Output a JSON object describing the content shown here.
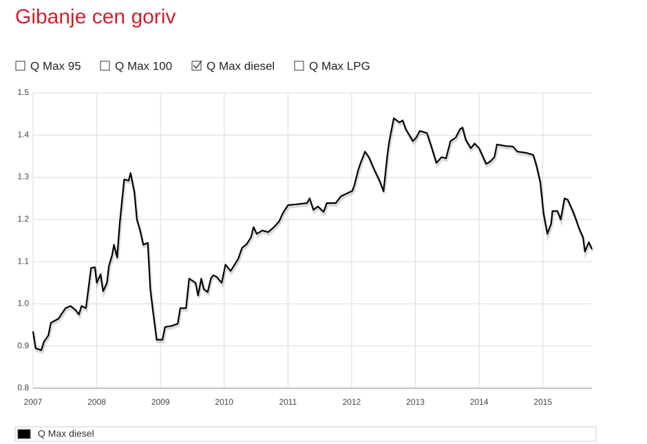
{
  "chart_data": {
    "type": "line",
    "title": "Gibanje cen goriv",
    "filters": [
      {
        "label": "Q Max 95",
        "checked": false
      },
      {
        "label": "Q Max 100",
        "checked": false
      },
      {
        "label": "Q Max diesel",
        "checked": true
      },
      {
        "label": "Q Max LPG",
        "checked": false
      }
    ],
    "x": [
      2007.0,
      2007.04,
      2007.13,
      2007.17,
      2007.24,
      2007.28,
      2007.4,
      2007.51,
      2007.59,
      2007.67,
      2007.72,
      2007.76,
      2007.83,
      2007.86,
      2007.91,
      2007.97,
      2008.0,
      2008.06,
      2008.1,
      2008.16,
      2008.19,
      2008.24,
      2008.27,
      2008.32,
      2008.36,
      2008.43,
      2008.5,
      2008.53,
      2008.59,
      2008.63,
      2008.68,
      2008.73,
      2008.8,
      2008.84,
      2008.88,
      2008.94,
      2009.03,
      2009.07,
      2009.18,
      2009.27,
      2009.31,
      2009.4,
      2009.45,
      2009.55,
      2009.59,
      2009.64,
      2009.68,
      2009.74,
      2009.79,
      2009.83,
      2009.88,
      2009.96,
      2010.02,
      2010.1,
      2010.15,
      2010.22,
      2010.28,
      2010.35,
      2010.42,
      2010.46,
      2010.51,
      2010.6,
      2010.69,
      2010.78,
      2010.86,
      2010.92,
      2011.0,
      2011.13,
      2011.3,
      2011.34,
      2011.4,
      2011.47,
      2011.56,
      2011.61,
      2011.75,
      2011.83,
      2012.01,
      2012.04,
      2012.1,
      2012.14,
      2012.21,
      2012.27,
      2012.35,
      2012.44,
      2012.5,
      2012.56,
      2012.59,
      2012.66,
      2012.75,
      2012.8,
      2012.85,
      2012.91,
      2012.96,
      2013.01,
      2013.07,
      2013.18,
      2013.24,
      2013.33,
      2013.41,
      2013.48,
      2013.55,
      2013.63,
      2013.7,
      2013.74,
      2013.79,
      2013.87,
      2013.93,
      2014.0,
      2014.11,
      2014.17,
      2014.24,
      2014.28,
      2014.42,
      2014.53,
      2014.6,
      2014.74,
      2014.85,
      2014.9,
      2014.96,
      2015.01,
      2015.07,
      2015.13,
      2015.15,
      2015.23,
      2015.28,
      2015.34,
      2015.39,
      2015.47,
      2015.52,
      2015.57,
      2015.63,
      2015.66,
      2015.72,
      2015.77
    ],
    "series": [
      {
        "name": "Q Max diesel",
        "color": "#000000",
        "values": [
          0.935,
          0.895,
          0.89,
          0.91,
          0.925,
          0.955,
          0.965,
          0.99,
          0.995,
          0.985,
          0.975,
          0.995,
          0.99,
          1.025,
          1.085,
          1.087,
          1.05,
          1.07,
          1.03,
          1.05,
          1.09,
          1.115,
          1.14,
          1.11,
          1.19,
          1.295,
          1.292,
          1.31,
          1.265,
          1.2,
          1.175,
          1.14,
          1.145,
          1.035,
          0.985,
          0.915,
          0.915,
          0.945,
          0.948,
          0.953,
          0.99,
          0.99,
          1.06,
          1.05,
          1.02,
          1.06,
          1.035,
          1.028,
          1.06,
          1.068,
          1.064,
          1.05,
          1.093,
          1.078,
          1.09,
          1.107,
          1.133,
          1.141,
          1.158,
          1.182,
          1.166,
          1.174,
          1.17,
          1.182,
          1.195,
          1.215,
          1.234,
          1.236,
          1.239,
          1.25,
          1.223,
          1.231,
          1.218,
          1.239,
          1.239,
          1.255,
          1.268,
          1.28,
          1.316,
          1.334,
          1.361,
          1.348,
          1.32,
          1.291,
          1.267,
          1.353,
          1.386,
          1.44,
          1.43,
          1.435,
          1.414,
          1.399,
          1.386,
          1.394,
          1.41,
          1.405,
          1.378,
          1.334,
          1.348,
          1.345,
          1.386,
          1.394,
          1.414,
          1.418,
          1.389,
          1.369,
          1.38,
          1.369,
          1.332,
          1.337,
          1.348,
          1.378,
          1.374,
          1.373,
          1.361,
          1.358,
          1.353,
          1.328,
          1.288,
          1.215,
          1.166,
          1.19,
          1.22,
          1.22,
          1.2,
          1.25,
          1.247,
          1.22,
          1.2,
          1.178,
          1.158,
          1.124,
          1.146,
          1.13
        ]
      }
    ],
    "xlim": [
      2007,
      2015.77
    ],
    "ylim": [
      0.8,
      1.5
    ],
    "xticks": [
      2007,
      2008,
      2009,
      2010,
      2011,
      2012,
      2013,
      2014,
      2015
    ],
    "yticks": [
      0.8,
      0.9,
      {
        "value": 1,
        "label": "1.0"
      },
      1.1,
      1.2,
      1.3,
      1.4,
      1.5
    ],
    "grid": true
  }
}
